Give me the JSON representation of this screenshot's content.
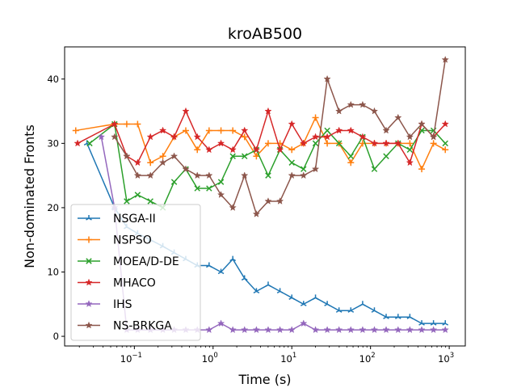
{
  "chart_data": {
    "type": "line",
    "title": "kroAB500",
    "xlabel": "Time (s)",
    "ylabel": "Non-dominated Fronts",
    "xscale": "log",
    "xlim": [
      0.013,
      1600
    ],
    "ylim": [
      -1.5,
      45
    ],
    "grid": false,
    "legend_position": "lower-left",
    "xticks": [
      {
        "value": 0.1,
        "base": "10",
        "exp": "−1"
      },
      {
        "value": 1,
        "base": "10",
        "exp": "0"
      },
      {
        "value": 10,
        "base": "10",
        "exp": "1"
      },
      {
        "value": 100,
        "base": "10",
        "exp": "2"
      },
      {
        "value": 1000,
        "base": "10",
        "exp": "3"
      }
    ],
    "yticks": [
      0,
      10,
      20,
      30,
      40
    ],
    "series": [
      {
        "name": "NSGA-II",
        "color": "#1f77b4",
        "marker": "tri",
        "x": [
          0.025,
          0.056,
          0.08,
          0.11,
          0.16,
          0.23,
          0.32,
          0.45,
          0.63,
          0.89,
          1.26,
          1.78,
          2.51,
          3.55,
          5.01,
          7.08,
          10,
          14.1,
          20,
          28.2,
          39.8,
          56.2,
          79.4,
          112,
          158,
          224,
          316,
          447,
          631,
          891
        ],
        "y": [
          30,
          20,
          17,
          16,
          15,
          14,
          13,
          12,
          11,
          11,
          10,
          12,
          9,
          7,
          8,
          7,
          6,
          5,
          6,
          5,
          4,
          4,
          5,
          4,
          3,
          3,
          3,
          2,
          2,
          2
        ]
      },
      {
        "name": "NSPSO",
        "color": "#ff7f0e",
        "marker": "plus",
        "x": [
          0.018,
          0.056,
          0.08,
          0.11,
          0.16,
          0.23,
          0.32,
          0.45,
          0.63,
          0.89,
          1.26,
          1.78,
          2.51,
          3.55,
          5.01,
          7.08,
          10,
          14.1,
          20,
          28.2,
          39.8,
          56.2,
          79.4,
          112,
          158,
          224,
          316,
          447,
          631,
          891
        ],
        "y": [
          32,
          33,
          33,
          33,
          27,
          28,
          31,
          32,
          29,
          32,
          32,
          32,
          31,
          28,
          30,
          30,
          29,
          30,
          34,
          30,
          30,
          27,
          30,
          30,
          30,
          30,
          30,
          26,
          30,
          29
        ]
      },
      {
        "name": "MOEA/D-DE",
        "color": "#2ca02c",
        "marker": "x",
        "x": [
          0.027,
          0.056,
          0.08,
          0.11,
          0.16,
          0.23,
          0.32,
          0.45,
          0.63,
          0.89,
          1.26,
          1.78,
          2.51,
          3.55,
          5.01,
          7.08,
          10,
          14.1,
          20,
          28.2,
          39.8,
          56.2,
          79.4,
          112,
          158,
          224,
          316,
          447,
          631,
          891
        ],
        "y": [
          30,
          33,
          21,
          22,
          21,
          20,
          24,
          26,
          23,
          23,
          24,
          28,
          28,
          29,
          25,
          29,
          27,
          26,
          30,
          32,
          30,
          28,
          31,
          26,
          28,
          30,
          29,
          32,
          32,
          30
        ]
      },
      {
        "name": "MHACO",
        "color": "#d62728",
        "marker": "star",
        "x": [
          0.019,
          0.056,
          0.08,
          0.11,
          0.16,
          0.23,
          0.32,
          0.45,
          0.63,
          0.89,
          1.26,
          1.78,
          2.51,
          3.55,
          5.01,
          7.08,
          10,
          14.1,
          20,
          28.2,
          39.8,
          56.2,
          79.4,
          112,
          158,
          224,
          316,
          447,
          631,
          891
        ],
        "y": [
          30,
          33,
          28,
          27,
          31,
          32,
          31,
          35,
          31,
          29,
          30,
          29,
          32,
          29,
          35,
          29,
          33,
          30,
          31,
          31,
          32,
          32,
          31,
          30,
          30,
          30,
          27,
          33,
          31,
          33
        ]
      },
      {
        "name": "IHS",
        "color": "#9467bd",
        "marker": "star",
        "x": [
          0.038,
          0.056,
          0.08,
          0.11,
          0.16,
          0.23,
          0.32,
          0.45,
          0.63,
          0.89,
          1.26,
          1.78,
          2.51,
          3.55,
          5.01,
          7.08,
          10,
          14.1,
          20,
          28.2,
          39.8,
          56.2,
          79.4,
          112,
          158,
          224,
          316,
          447,
          631,
          891
        ],
        "y": [
          31,
          20,
          1,
          1,
          1,
          1,
          1,
          1,
          1,
          1,
          2,
          1,
          1,
          1,
          1,
          1,
          1,
          2,
          1,
          1,
          1,
          1,
          1,
          1,
          1,
          1,
          1,
          1,
          1,
          1
        ]
      },
      {
        "name": "NS-BRKGA",
        "color": "#8c564b",
        "marker": "star",
        "x": [
          0.056,
          0.08,
          0.11,
          0.16,
          0.23,
          0.32,
          0.45,
          0.63,
          0.89,
          1.26,
          1.78,
          2.51,
          3.55,
          5.01,
          7.08,
          10,
          14.1,
          20,
          28.2,
          39.8,
          56.2,
          79.4,
          112,
          158,
          224,
          316,
          447,
          631,
          891
        ],
        "y": [
          31,
          28,
          25,
          25,
          27,
          28,
          26,
          25,
          25,
          22,
          20,
          25,
          19,
          21,
          21,
          25,
          25,
          26,
          40,
          35,
          36,
          36,
          35,
          32,
          34,
          31,
          33,
          31,
          43
        ]
      }
    ]
  }
}
